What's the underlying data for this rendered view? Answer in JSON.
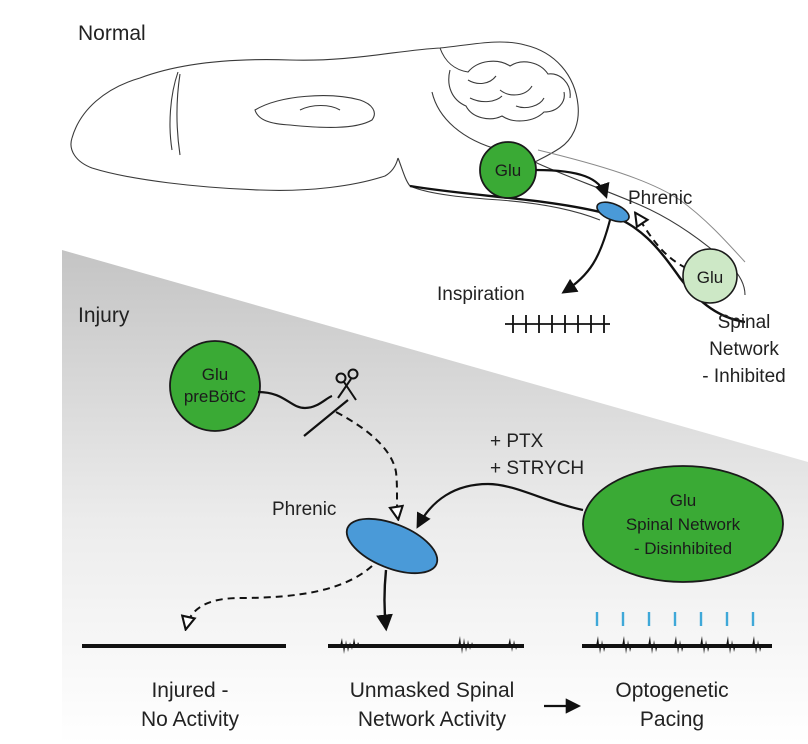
{
  "normal": {
    "section_label": "Normal",
    "glu_brainstem": "Glu",
    "phrenic": "Phrenic",
    "glu_spinal": "Glu",
    "inspiration": "Inspiration",
    "spinal_network": [
      "Spinal",
      "Network",
      "- Inhibited"
    ]
  },
  "injury": {
    "section_label": "Injury",
    "prebotc": [
      "Glu",
      "preBötC"
    ],
    "drugs": [
      "+ PTX",
      "+ STRYCH"
    ],
    "phrenic": "Phrenic",
    "spinal_network": [
      "Glu",
      "Spinal Network",
      "- Disinhibited"
    ]
  },
  "outcomes": {
    "injured": [
      "Injured -",
      "No Activity"
    ],
    "unmasked": [
      "Unmasked Spinal",
      "Network Activity"
    ],
    "pacing": [
      "Optogenetic",
      "Pacing"
    ]
  },
  "colors": {
    "glu_green": "#3aaa35",
    "glu_inhibited": "#cde8c6",
    "phrenic_blue": "#4a9ad8",
    "optogenetic_ticks": "#3fa8d8",
    "injury_gradient": "#c9c9c9"
  }
}
